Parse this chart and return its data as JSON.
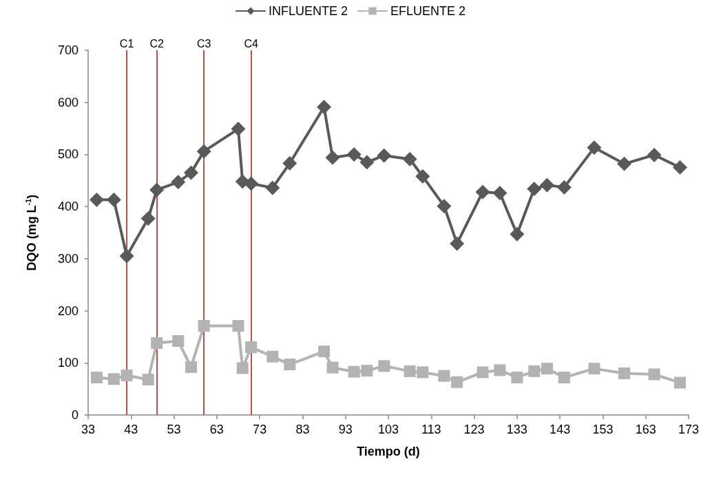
{
  "chart_data": {
    "type": "line",
    "xlabel": "Tiempo (d)",
    "ylabel": "DQO (mg L$^{-1}$)",
    "xlim": [
      33,
      173
    ],
    "xticks": [
      33,
      43,
      53,
      63,
      73,
      83,
      93,
      103,
      113,
      123,
      133,
      143,
      153,
      163,
      173
    ],
    "ylim": [
      0,
      700
    ],
    "yticks": [
      0,
      100,
      200,
      300,
      400,
      500,
      600,
      700
    ],
    "grid": false,
    "legend": "top",
    "series": [
      {
        "name": "INFLUENTE 2",
        "color": "#595959",
        "marker": "diamond",
        "x": [
          35,
          39,
          42,
          47,
          49,
          54,
          57,
          60,
          68,
          69,
          71,
          76,
          80,
          88,
          90,
          95,
          98,
          102,
          108,
          111,
          116,
          119,
          125,
          129,
          133,
          137,
          140,
          144,
          151,
          158,
          165,
          171
        ],
        "values": [
          413,
          413,
          305,
          377,
          432,
          447,
          465,
          506,
          549,
          448,
          444,
          436,
          483,
          591,
          494,
          500,
          485,
          498,
          491,
          458,
          401,
          329,
          428,
          426,
          347,
          434,
          441,
          437,
          513,
          482,
          499,
          475
        ]
      },
      {
        "name": "EFLUENTE 2",
        "color": "#b3b3b3",
        "marker": "square",
        "x": [
          35,
          39,
          42,
          47,
          49,
          54,
          57,
          60,
          68,
          69,
          71,
          76,
          80,
          88,
          90,
          95,
          98,
          102,
          108,
          111,
          116,
          119,
          125,
          129,
          133,
          137,
          140,
          144,
          151,
          158,
          165,
          171
        ],
        "values": [
          72,
          69,
          76,
          68,
          138,
          142,
          92,
          171,
          171,
          90,
          130,
          112,
          97,
          122,
          91,
          83,
          85,
          94,
          84,
          82,
          75,
          63,
          82,
          86,
          72,
          84,
          89,
          72,
          89,
          80,
          78,
          62
        ]
      }
    ],
    "ref_lines": [
      {
        "axis": "x",
        "value": 42,
        "label": "C1",
        "color": "#c0504d"
      },
      {
        "axis": "x",
        "value": 49,
        "label": "C2",
        "color": "#c0504d"
      },
      {
        "axis": "x",
        "value": 60,
        "label": "C3",
        "color": "#c0504d"
      },
      {
        "axis": "x",
        "value": 71,
        "label": "C4",
        "color": "#c0504d"
      }
    ]
  }
}
